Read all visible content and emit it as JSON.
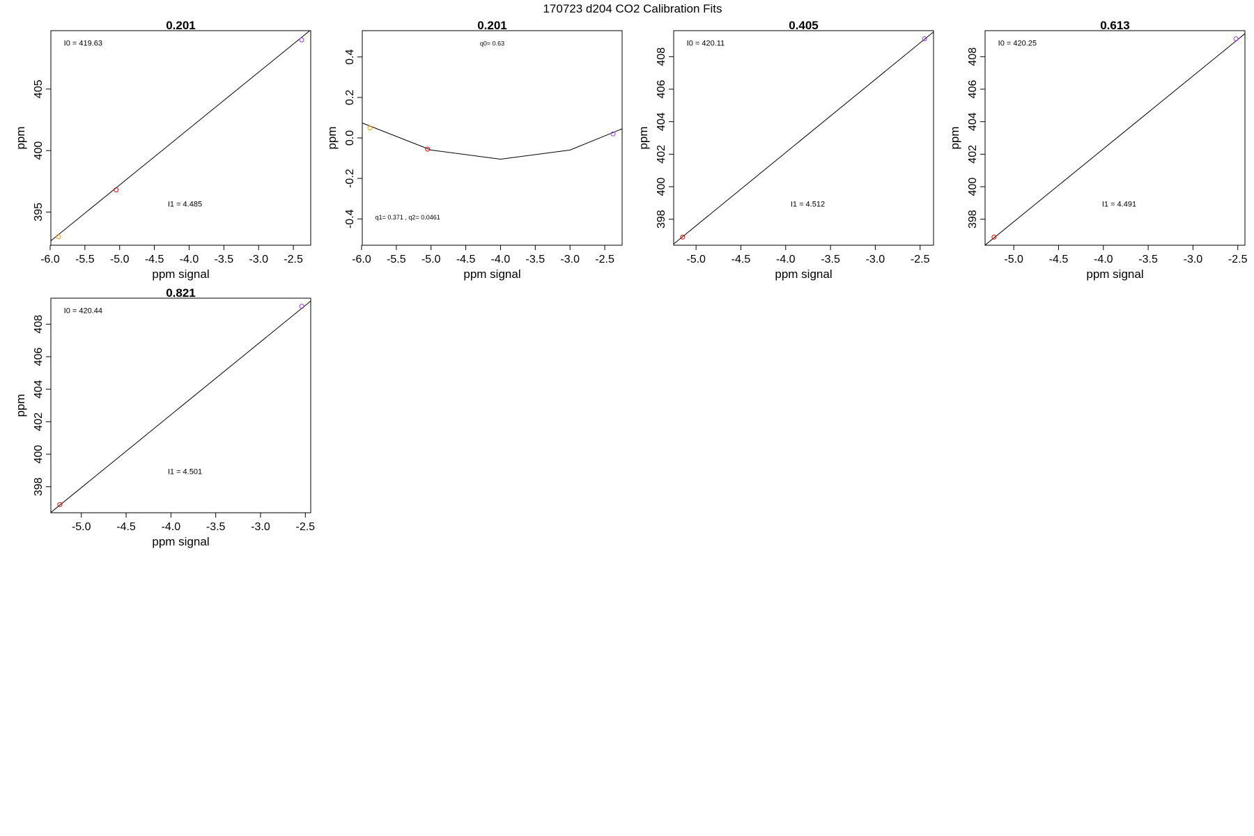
{
  "figure_title": "170723   d204   CO2 Calibration Fits",
  "colors": {
    "orange": "#e69f00",
    "red": "#dd0000",
    "purple": "#9933ff",
    "line": "#000000"
  },
  "chart_data": [
    {
      "type": "scatter",
      "title": "0.201",
      "xlabel": "ppm signal",
      "ylabel": "ppm",
      "xlim": [
        -5.99,
        -2.25
      ],
      "ylim": [
        392.3,
        409.75
      ],
      "xticks": [
        -6.0,
        -5.5,
        -5.0,
        -4.5,
        -4.0,
        -3.5,
        -3.0,
        -2.5
      ],
      "xtick_labels": [
        "-6.0",
        "-5.5",
        "-5.0",
        "-4.5",
        "-4.0",
        "-3.5",
        "-3.0",
        "-2.5"
      ],
      "yticks": [
        395,
        400,
        405
      ],
      "ytick_labels": [
        "395",
        "400",
        "405"
      ],
      "points": [
        {
          "x": -5.88,
          "y": 393.0,
          "color": "orange"
        },
        {
          "x": -5.05,
          "y": 396.8,
          "color": "red"
        },
        {
          "x": -2.38,
          "y": 409.0,
          "color": "purple"
        }
      ],
      "fit_line": [
        [
          -6.2,
          391.7
        ],
        [
          -2.1,
          410.5
        ]
      ],
      "annotations": [
        {
          "text": "I0 =  419.63",
          "position": "top-left"
        },
        {
          "text": "I1 =  4.485",
          "position": "center-right"
        }
      ]
    },
    {
      "type": "scatter",
      "title": "0.201",
      "xlabel": "ppm signal",
      "ylabel": "ppm",
      "xlim": [
        -5.99,
        -2.25
      ],
      "ylim": [
        -0.53,
        0.53
      ],
      "xticks": [
        -6.0,
        -5.5,
        -5.0,
        -4.5,
        -4.0,
        -3.5,
        -3.0,
        -2.5
      ],
      "xtick_labels": [
        "-6.0",
        "-5.5",
        "-5.0",
        "-4.5",
        "-4.0",
        "-3.5",
        "-3.0",
        "-2.5"
      ],
      "yticks": [
        -0.4,
        -0.2,
        0.0,
        0.2,
        0.4
      ],
      "ytick_labels": [
        "-0.4",
        "-0.2",
        "0.0",
        "0.2",
        "0.4"
      ],
      "points": [
        {
          "x": -5.88,
          "y": 0.05,
          "color": "orange"
        },
        {
          "x": -5.05,
          "y": -0.055,
          "color": "red"
        },
        {
          "x": -2.38,
          "y": 0.02,
          "color": "purple"
        }
      ],
      "fit_line": [
        [
          -6.0,
          0.075
        ],
        [
          -5.0,
          -0.06
        ],
        [
          -4.0,
          -0.105
        ],
        [
          -3.0,
          -0.06
        ],
        [
          -2.25,
          0.045
        ]
      ],
      "annotations": [
        {
          "text": "q0= 0.63",
          "position": "top-center"
        },
        {
          "text": "q1= 0.371 , q2= 0.0461",
          "position": "bottom-left"
        }
      ]
    },
    {
      "type": "scatter",
      "title": "0.405",
      "xlabel": "ppm signal",
      "ylabel": "ppm",
      "xlim": [
        -5.25,
        -2.35
      ],
      "ylim": [
        396.4,
        409.6
      ],
      "xticks": [
        -5.0,
        -4.5,
        -4.0,
        -3.5,
        -3.0,
        -2.5
      ],
      "xtick_labels": [
        "-5.0",
        "-4.5",
        "-4.0",
        "-3.5",
        "-3.0",
        "-2.5"
      ],
      "yticks": [
        398,
        400,
        402,
        404,
        406,
        408
      ],
      "ytick_labels": [
        "398",
        "400",
        "402",
        "404",
        "406",
        "408"
      ],
      "points": [
        {
          "x": -5.15,
          "y": 396.9,
          "color": "red"
        },
        {
          "x": -2.45,
          "y": 409.1,
          "color": "purple"
        }
      ],
      "fit_line": [
        [
          -5.4,
          395.8
        ],
        [
          -2.2,
          410.2
        ]
      ],
      "annotations": [
        {
          "text": "I0 =  420.11",
          "position": "top-left"
        },
        {
          "text": "I1 =  4.512",
          "position": "center-right"
        }
      ]
    },
    {
      "type": "scatter",
      "title": "0.613",
      "xlabel": "ppm signal",
      "ylabel": "ppm",
      "xlim": [
        -5.32,
        -2.42
      ],
      "ylim": [
        396.4,
        409.6
      ],
      "xticks": [
        -5.0,
        -4.5,
        -4.0,
        -3.5,
        -3.0,
        -2.5
      ],
      "xtick_labels": [
        "-5.0",
        "-4.5",
        "-4.0",
        "-3.5",
        "-3.0",
        "-2.5"
      ],
      "yticks": [
        398,
        400,
        402,
        404,
        406,
        408
      ],
      "ytick_labels": [
        "398",
        "400",
        "402",
        "404",
        "406",
        "408"
      ],
      "points": [
        {
          "x": -5.22,
          "y": 396.9,
          "color": "red"
        },
        {
          "x": -2.52,
          "y": 409.1,
          "color": "purple"
        }
      ],
      "fit_line": [
        [
          -5.5,
          395.6
        ],
        [
          -2.2,
          410.4
        ]
      ],
      "annotations": [
        {
          "text": "I0 =  420.25",
          "position": "top-left"
        },
        {
          "text": "I1 =  4.491",
          "position": "center-right"
        }
      ]
    },
    {
      "type": "scatter",
      "title": "0.821",
      "xlabel": "ppm signal",
      "ylabel": "ppm",
      "xlim": [
        -5.34,
        -2.44
      ],
      "ylim": [
        396.4,
        409.6
      ],
      "xticks": [
        -5.0,
        -4.5,
        -4.0,
        -3.5,
        -3.0,
        -2.5
      ],
      "xtick_labels": [
        "-5.0",
        "-4.5",
        "-4.0",
        "-3.5",
        "-3.0",
        "-2.5"
      ],
      "yticks": [
        398,
        400,
        402,
        404,
        406,
        408
      ],
      "ytick_labels": [
        "398",
        "400",
        "402",
        "404",
        "406",
        "408"
      ],
      "points": [
        {
          "x": -5.24,
          "y": 396.9,
          "color": "red"
        },
        {
          "x": -2.54,
          "y": 409.1,
          "color": "purple"
        }
      ],
      "fit_line": [
        [
          -5.5,
          395.7
        ],
        [
          -2.2,
          410.5
        ]
      ],
      "annotations": [
        {
          "text": "I0 =  420.44",
          "position": "top-left"
        },
        {
          "text": "I1 =  4.501",
          "position": "center-right"
        }
      ]
    }
  ]
}
